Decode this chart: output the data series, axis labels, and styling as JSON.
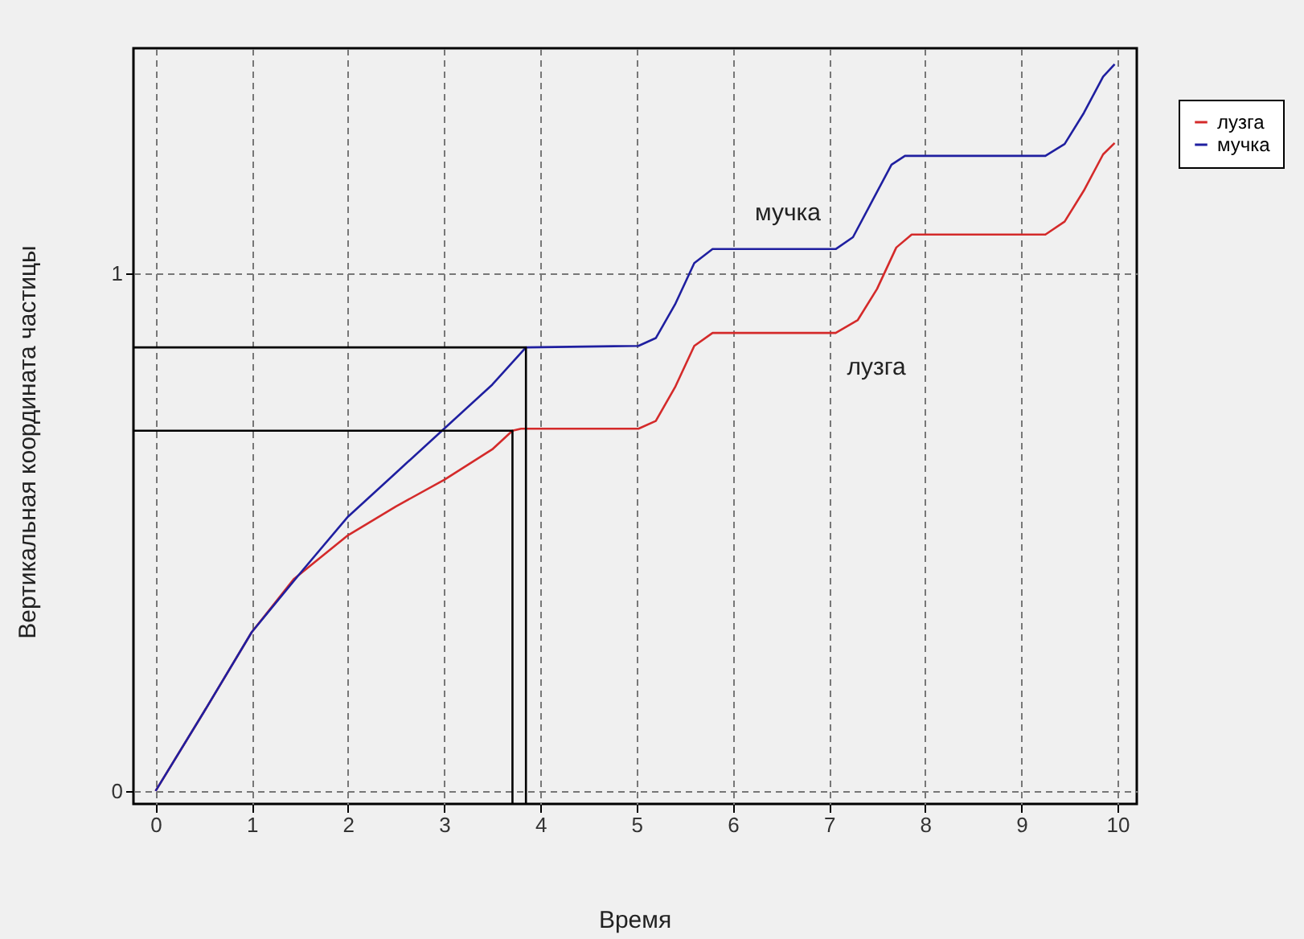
{
  "chart_data": {
    "type": "line",
    "xlabel": "Время",
    "ylabel": "Вертикальная координата частицы",
    "xlim": [
      -0.23,
      10.2
    ],
    "ylim": [
      -0.025,
      1.435
    ],
    "xticks": [
      0,
      1,
      2,
      3,
      4,
      5,
      6,
      7,
      8,
      9,
      10
    ],
    "yticks": [
      0,
      1
    ],
    "grid": true,
    "legend": "top right",
    "line_style": "solid",
    "annotations": [
      "мучка",
      "лузга"
    ],
    "series": [
      {
        "name": "лузга",
        "color": "#d42a2a",
        "x": [
          0,
          0.5,
          1,
          1.44,
          2,
          2.5,
          3,
          3.5,
          3.71,
          3.8,
          5.02,
          5.2,
          5.4,
          5.6,
          5.79,
          7.07,
          7.3,
          7.5,
          7.7,
          7.86,
          9.25,
          9.45,
          9.65,
          9.85,
          9.97
        ],
        "values": [
          0,
          0.152,
          0.307,
          0.41,
          0.494,
          0.55,
          0.601,
          0.66,
          0.696,
          0.7,
          0.7,
          0.715,
          0.78,
          0.86,
          0.885,
          0.885,
          0.91,
          0.97,
          1.05,
          1.075,
          1.075,
          1.1,
          1.16,
          1.23,
          1.252
        ]
      },
      {
        "name": "мучка",
        "color": "#1f1fa0",
        "x": [
          0,
          0.5,
          1,
          1.5,
          2,
          2.5,
          3,
          3.5,
          3.85,
          5.02,
          5.2,
          5.4,
          5.6,
          5.79,
          7.07,
          7.25,
          7.45,
          7.65,
          7.79,
          9.25,
          9.45,
          9.65,
          9.85,
          9.97
        ],
        "values": [
          0,
          0.152,
          0.307,
          0.42,
          0.53,
          0.615,
          0.7,
          0.785,
          0.857,
          0.86,
          0.875,
          0.94,
          1.02,
          1.047,
          1.047,
          1.07,
          1.14,
          1.21,
          1.227,
          1.227,
          1.25,
          1.31,
          1.38,
          1.404
        ]
      },
      {
        "color": "#000000",
        "x": [
          -0.23,
          3.85,
          3.85
        ],
        "values": [
          0.857,
          0.857,
          -0.025
        ]
      },
      {
        "color": "#000000",
        "x": [
          -0.23,
          3.71,
          3.71
        ],
        "values": [
          0.696,
          0.696,
          -0.025
        ]
      }
    ]
  }
}
